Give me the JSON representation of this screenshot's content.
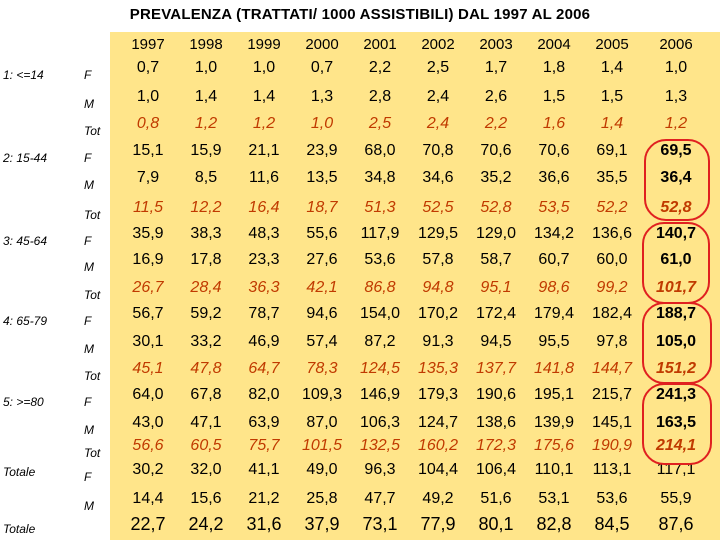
{
  "title": "PREVALENZA (TRATTATI/ 1000 ASSISTIBILI) DAL 1997 AL 2006",
  "years": [
    "1997",
    "1998",
    "1999",
    "2000",
    "2001",
    "2002",
    "2003",
    "2004",
    "2005",
    "2006"
  ],
  "groups": [
    {
      "label": "1: <=14",
      "rows": [
        {
          "sex": "F",
          "values": [
            "0,7",
            "1,0",
            "1,0",
            "0,7",
            "2,2",
            "2,5",
            "1,7",
            "1,8",
            "1,4",
            "1,0"
          ]
        },
        {
          "sex": "M",
          "values": [
            "1,0",
            "1,4",
            "1,4",
            "1,3",
            "2,8",
            "2,4",
            "2,6",
            "1,5",
            "1,5",
            "1,3"
          ]
        },
        {
          "sex": "Tot",
          "values": [
            "0,8",
            "1,2",
            "1,2",
            "1,0",
            "2,5",
            "2,4",
            "2,2",
            "1,6",
            "1,4",
            "1,2"
          ]
        }
      ]
    },
    {
      "label": "2: 15-44",
      "rows": [
        {
          "sex": "F",
          "values": [
            "15,1",
            "15,9",
            "21,1",
            "23,9",
            "68,0",
            "70,8",
            "70,6",
            "70,6",
            "69,1",
            "69,5"
          ]
        },
        {
          "sex": "M",
          "values": [
            "7,9",
            "8,5",
            "11,6",
            "13,5",
            "34,8",
            "34,6",
            "35,2",
            "36,6",
            "35,5",
            "36,4"
          ]
        },
        {
          "sex": "Tot",
          "values": [
            "11,5",
            "12,2",
            "16,4",
            "18,7",
            "51,3",
            "52,5",
            "52,8",
            "53,5",
            "52,2",
            "52,8"
          ]
        }
      ]
    },
    {
      "label": "3: 45-64",
      "rows": [
        {
          "sex": "F",
          "values": [
            "35,9",
            "38,3",
            "48,3",
            "55,6",
            "117,9",
            "129,5",
            "129,0",
            "134,2",
            "136,6",
            "140,7"
          ]
        },
        {
          "sex": "M",
          "values": [
            "16,9",
            "17,8",
            "23,3",
            "27,6",
            "53,6",
            "57,8",
            "58,7",
            "60,7",
            "60,0",
            "61,0"
          ]
        },
        {
          "sex": "Tot",
          "values": [
            "26,7",
            "28,4",
            "36,3",
            "42,1",
            "86,8",
            "94,8",
            "95,1",
            "98,6",
            "99,2",
            "101,7"
          ]
        }
      ]
    },
    {
      "label": "4: 65-79",
      "rows": [
        {
          "sex": "F",
          "values": [
            "56,7",
            "59,2",
            "78,7",
            "94,6",
            "154,0",
            "170,2",
            "172,4",
            "179,4",
            "182,4",
            "188,7"
          ]
        },
        {
          "sex": "M",
          "values": [
            "30,1",
            "33,2",
            "46,9",
            "57,4",
            "87,2",
            "91,3",
            "94,5",
            "95,5",
            "97,8",
            "105,0"
          ]
        },
        {
          "sex": "Tot",
          "values": [
            "45,1",
            "47,8",
            "64,7",
            "78,3",
            "124,5",
            "135,3",
            "137,7",
            "141,8",
            "144,7",
            "151,2"
          ]
        }
      ]
    },
    {
      "label": "5: >=80",
      "rows": [
        {
          "sex": "F",
          "values": [
            "64,0",
            "67,8",
            "82,0",
            "109,3",
            "146,9",
            "179,3",
            "190,6",
            "195,1",
            "215,7",
            "241,3"
          ]
        },
        {
          "sex": "M",
          "values": [
            "43,0",
            "47,1",
            "63,9",
            "87,0",
            "106,3",
            "124,7",
            "138,6",
            "139,9",
            "145,1",
            "163,5"
          ]
        },
        {
          "sex": "Tot",
          "values": [
            "56,6",
            "60,5",
            "75,7",
            "101,5",
            "132,5",
            "160,2",
            "172,3",
            "175,6",
            "190,9",
            "214,1"
          ]
        }
      ]
    },
    {
      "label": "Totale",
      "rows": [
        {
          "sex": "F",
          "values": [
            "30,2",
            "32,0",
            "41,1",
            "49,0",
            "96,3",
            "104,4",
            "106,4",
            "110,1",
            "113,1",
            "117,1"
          ]
        },
        {
          "sex": "M",
          "values": [
            "14,4",
            "15,6",
            "21,2",
            "25,8",
            "47,7",
            "49,2",
            "51,6",
            "53,1",
            "53,6",
            "55,9"
          ]
        }
      ]
    }
  ],
  "total": {
    "label": "Totale",
    "values": [
      "22,7",
      "24,2",
      "31,6",
      "37,9",
      "73,1",
      "77,9",
      "80,1",
      "82,8",
      "84,5",
      "87,6"
    ]
  },
  "colors": {
    "panel": "#ffe58a",
    "tot_text": "#c03a00",
    "highlight": "#e02020"
  }
}
